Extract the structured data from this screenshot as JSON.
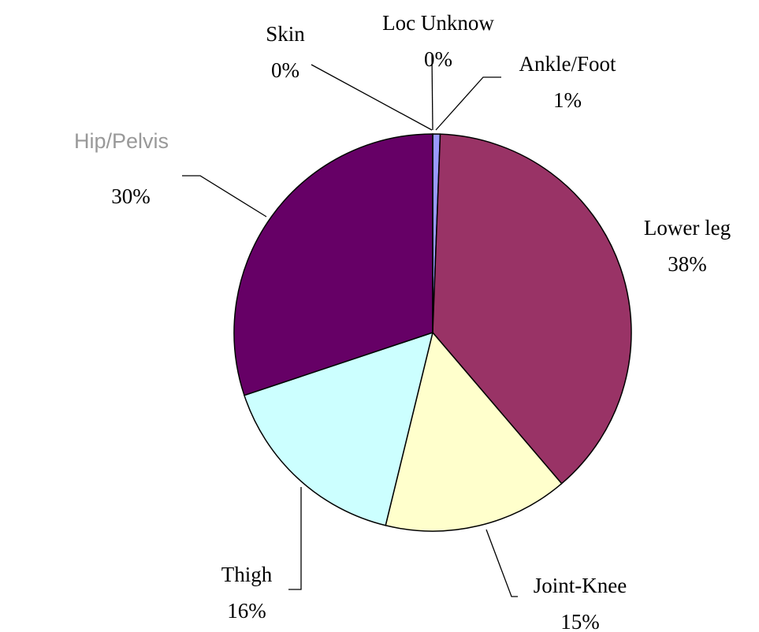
{
  "chart_data": {
    "type": "pie",
    "title": "",
    "start": "12 o'clock",
    "direction": "clockwise",
    "slices": [
      {
        "name": "Loc Unknow",
        "value": 0,
        "label": "0%",
        "color": "#9999ff"
      },
      {
        "name": "Ankle/Foot",
        "value": 0.6,
        "label": "1%",
        "color": "#9999ff"
      },
      {
        "name": "Lower leg",
        "value": 38,
        "label": "38%",
        "color": "#993366"
      },
      {
        "name": "Joint-Knee",
        "value": 15,
        "label": "15%",
        "color": "#ffffcc"
      },
      {
        "name": "Thigh",
        "value": 16,
        "label": "16%",
        "color": "#ccffff"
      },
      {
        "name": "Hip/Pelvis",
        "value": 30,
        "label": "30%",
        "color": "#660066"
      },
      {
        "name": "Skin",
        "value": 0,
        "label": "0%",
        "color": "#9999ff"
      }
    ],
    "legend": "none"
  }
}
